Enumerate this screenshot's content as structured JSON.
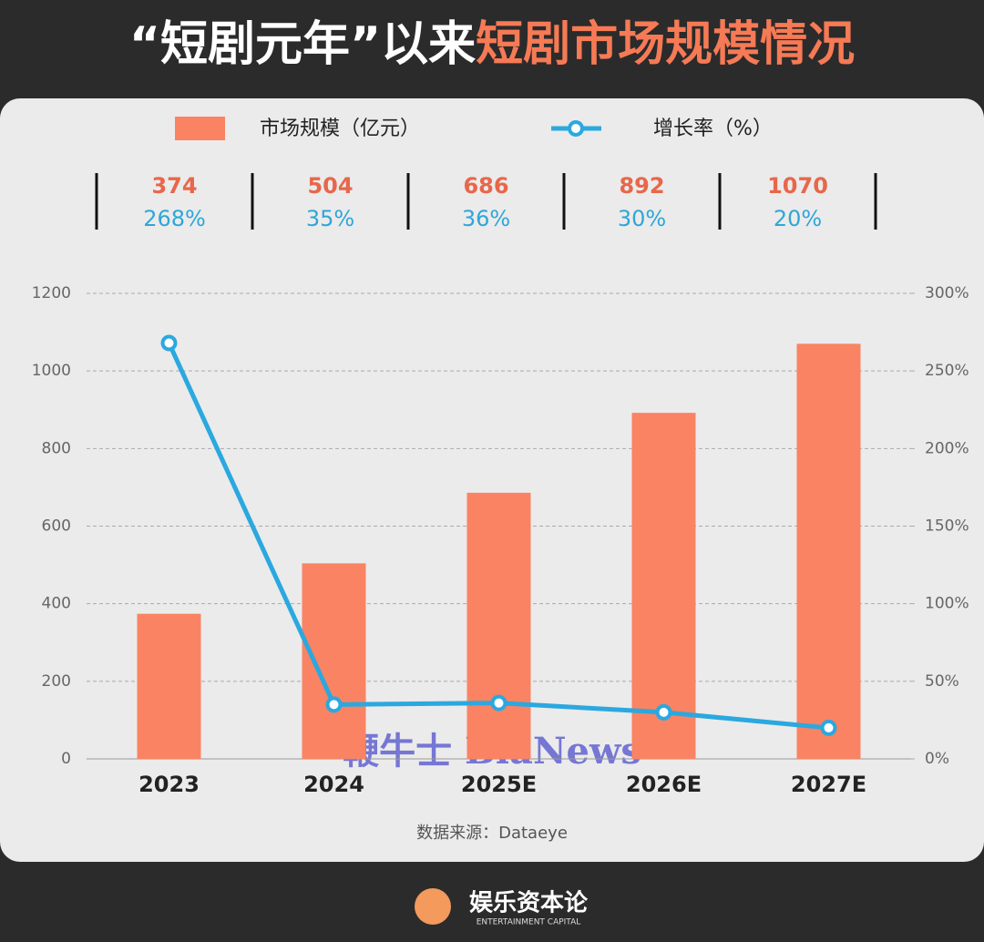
{
  "chart_data": {
    "type": "bar-line",
    "title": [
      "“短剧元年”以来",
      "短剧市场规模情况"
    ],
    "categories": [
      "2023",
      "2024",
      "2025E",
      "2026E",
      "2027E"
    ],
    "series": [
      {
        "name": "市场规模（亿元）",
        "color": "#fa8363",
        "values": [
          374,
          504,
          686,
          892,
          1070
        ]
      },
      {
        "name": "增长率（%）",
        "color": "#2ba8df",
        "axis": "y2",
        "values": [
          268,
          35,
          36,
          30,
          20
        ],
        "value_labels": [
          "268%",
          "35%",
          "36%",
          "30%",
          "20%"
        ]
      }
    ],
    "ylim": [
      0,
      1200
    ],
    "yticks": [
      0,
      200,
      400,
      600,
      800,
      1000,
      1200
    ],
    "y2lim": [
      0,
      300
    ],
    "y2ticks": [
      {
        "value": 0,
        "label": "0%"
      },
      {
        "value": 50,
        "label": "50%"
      },
      {
        "value": 100,
        "label": "100%"
      },
      {
        "value": 150,
        "label": "150%"
      },
      {
        "value": 200,
        "label": "200%"
      },
      {
        "value": 250,
        "label": "250%"
      },
      {
        "value": 300,
        "label": "300%"
      }
    ],
    "grid": true,
    "source": "数据来源：Dataeye",
    "watermark": "鞭牛士 BiaNews",
    "brand": {
      "name": "娱乐资本论",
      "subtitle": "ENTERTAINMENT CAPITAL"
    }
  }
}
